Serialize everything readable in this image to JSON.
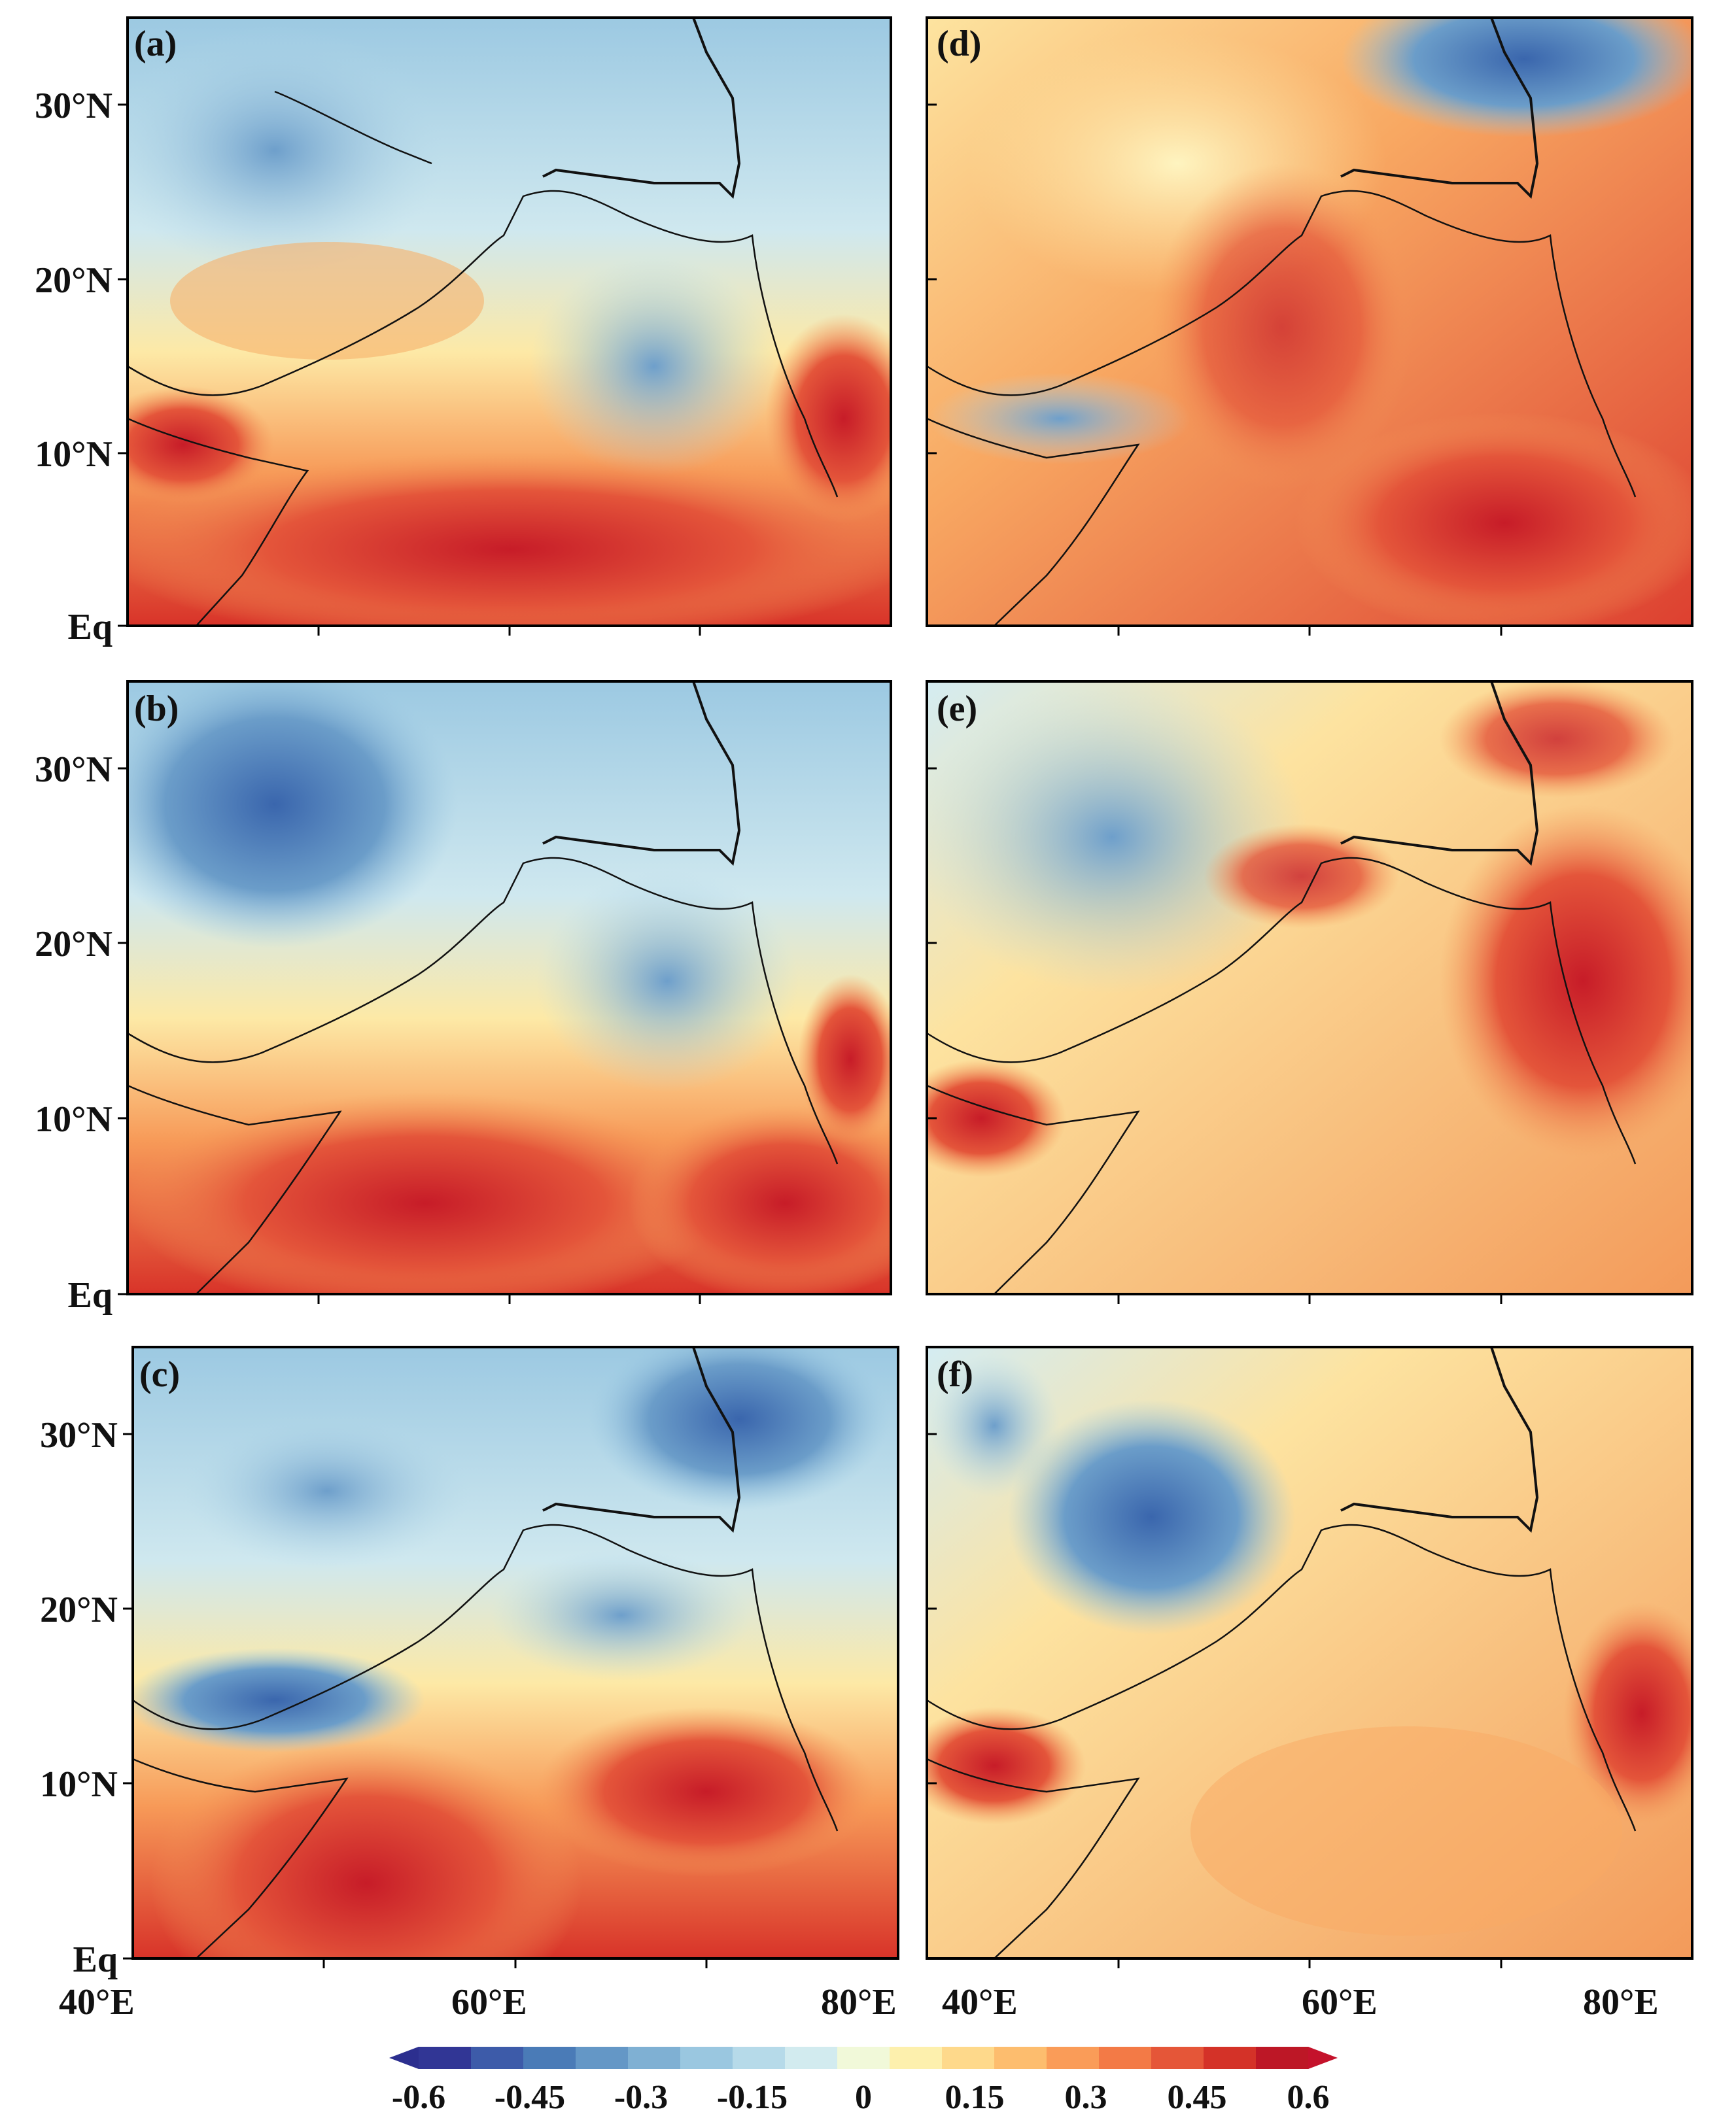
{
  "figure": {
    "panels": [
      {
        "id": "a",
        "label": "(a)"
      },
      {
        "id": "b",
        "label": "(b)"
      },
      {
        "id": "c",
        "label": "(c)"
      },
      {
        "id": "d",
        "label": "(d)"
      },
      {
        "id": "e",
        "label": "(e)"
      },
      {
        "id": "f",
        "label": "(f)"
      }
    ],
    "lat_labels": [
      "30°N",
      "20°N",
      "10°N",
      "Eq"
    ],
    "lon_labels_left": [
      "40°E",
      "60°E",
      "80°E"
    ],
    "lon_labels_right": [
      "40°E",
      "60°E",
      "80°E"
    ],
    "lon_range": [
      40,
      80
    ],
    "lat_range": [
      0,
      35
    ],
    "colorbar": {
      "min": -0.6,
      "max": 0.6,
      "tick_labels": [
        "-0.6",
        "-0.45",
        "-0.3",
        "-0.15",
        "0",
        "0.15",
        "0.3",
        "0.45",
        "0.6"
      ],
      "colors": [
        "#313695",
        "#3d5ba9",
        "#4a7bb7",
        "#6497c6",
        "#7fb0d3",
        "#9ac7e0",
        "#b6dae9",
        "#d2ebef",
        "#f1f9d9",
        "#fdf0ad",
        "#fed98b",
        "#fdbd6e",
        "#fa9c58",
        "#f37a46",
        "#e55638",
        "#d43228",
        "#bd1726"
      ],
      "left_arrow_color": "#2c2f8f",
      "right_arrow_color": "#c4122b"
    }
  }
}
